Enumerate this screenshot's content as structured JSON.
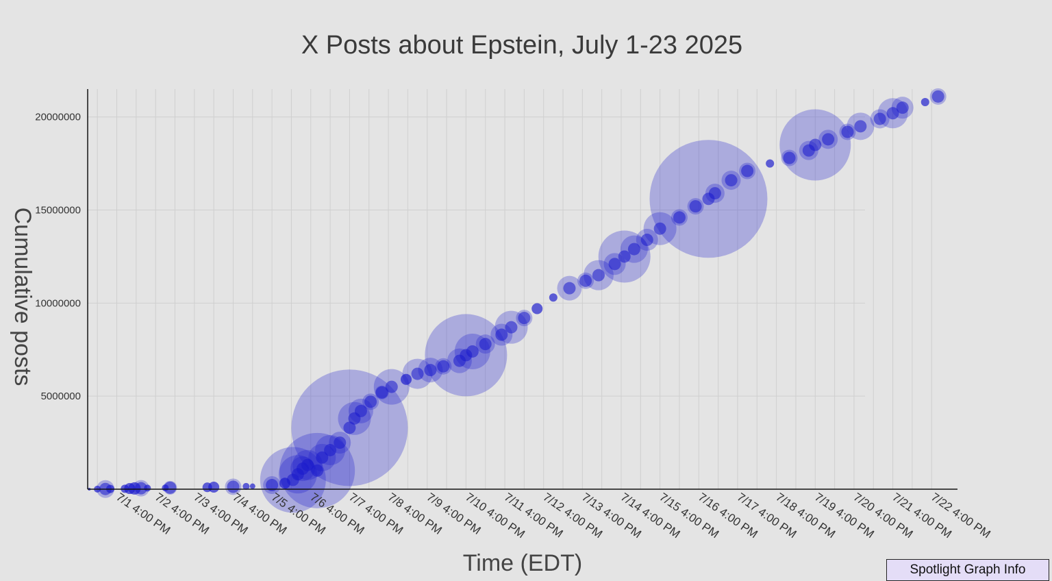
{
  "chart_data": {
    "type": "scatter",
    "title": "X Posts about Epstein, July 1-23 2025",
    "xlabel": "Time (EDT)",
    "ylabel": "Cumulative posts",
    "xlim": [
      "2025-06-30T22:00",
      "2025-07-23T08:00"
    ],
    "ylim": [
      0,
      21500000
    ],
    "y_ticks": [
      5000000,
      10000000,
      15000000,
      20000000
    ],
    "y_tick_labels": [
      "5000000",
      "10000000",
      "15000000",
      "20000000"
    ],
    "x_ticks": [
      "2025-07-01T16:00",
      "2025-07-02T16:00",
      "2025-07-03T16:00",
      "2025-07-04T16:00",
      "2025-07-05T16:00",
      "2025-07-06T16:00",
      "2025-07-07T16:00",
      "2025-07-08T16:00",
      "2025-07-09T16:00",
      "2025-07-10T16:00",
      "2025-07-11T16:00",
      "2025-07-12T16:00",
      "2025-07-13T16:00",
      "2025-07-14T16:00",
      "2025-07-15T16:00",
      "2025-07-16T16:00",
      "2025-07-17T16:00",
      "2025-07-18T16:00",
      "2025-07-19T16:00",
      "2025-07-20T16:00",
      "2025-07-21T16:00",
      "2025-07-22T16:00"
    ],
    "x_tick_labels": [
      "7/1 4:00 PM",
      "7/2 4:00 PM",
      "7/3 4:00 PM",
      "7/4 4:00 PM",
      "7/5 4:00 PM",
      "7/6 4:00 PM",
      "7/7 4:00 PM",
      "7/8 4:00 PM",
      "7/9 4:00 PM",
      "7/10 4:00 PM",
      "7/11 4:00 PM",
      "7/12 4:00 PM",
      "7/13 4:00 PM",
      "7/14 4:00 PM",
      "7/15 4:00 PM",
      "7/16 4:00 PM",
      "7/17 4:00 PM",
      "7/18 4:00 PM",
      "7/19 4:00 PM",
      "7/20 4:00 PM",
      "7/21 4:00 PM",
      "7/22 4:00 PM"
    ],
    "grid": true,
    "marker_color": "#1a1acc",
    "series": [
      {
        "points": [
          {
            "x": "2025-06-30T23:00",
            "y": 0,
            "r": 2
          },
          {
            "x": "2025-07-01T04:00",
            "y": 5000,
            "r": 5
          },
          {
            "x": "2025-07-01T09:00",
            "y": 10000,
            "r": 13
          },
          {
            "x": "2025-07-01T12:00",
            "y": 15000,
            "r": 6
          },
          {
            "x": "2025-07-01T21:00",
            "y": 25000,
            "r": 6
          },
          {
            "x": "2025-07-02T00:00",
            "y": 35000,
            "r": 8
          },
          {
            "x": "2025-07-02T03:00",
            "y": 40000,
            "r": 9
          },
          {
            "x": "2025-07-02T07:00",
            "y": 50000,
            "r": 12
          },
          {
            "x": "2025-07-02T11:00",
            "y": 60000,
            "r": 5
          },
          {
            "x": "2025-07-02T22:00",
            "y": 70000,
            "r": 5
          },
          {
            "x": "2025-07-03T01:00",
            "y": 80000,
            "r": 10
          },
          {
            "x": "2025-07-04T00:00",
            "y": 100000,
            "r": 7
          },
          {
            "x": "2025-07-04T04:00",
            "y": 110000,
            "r": 8
          },
          {
            "x": "2025-07-04T16:00",
            "y": 130000,
            "r": 12
          },
          {
            "x": "2025-07-05T00:00",
            "y": 150000,
            "r": 5
          },
          {
            "x": "2025-07-05T04:00",
            "y": 160000,
            "r": 4
          },
          {
            "x": "2025-07-05T16:00",
            "y": 220000,
            "r": 13
          },
          {
            "x": "2025-07-06T00:00",
            "y": 320000,
            "r": 8
          },
          {
            "x": "2025-07-06T05:00",
            "y": 500000,
            "r": 48
          },
          {
            "x": "2025-07-06T08:00",
            "y": 800000,
            "r": 28
          },
          {
            "x": "2025-07-06T11:00",
            "y": 1100000,
            "r": 18
          },
          {
            "x": "2025-07-06T14:00",
            "y": 1300000,
            "r": 22
          },
          {
            "x": "2025-07-06T20:00",
            "y": 1000000,
            "r": 55
          },
          {
            "x": "2025-07-06T23:00",
            "y": 1700000,
            "r": 20
          },
          {
            "x": "2025-07-07T04:00",
            "y": 2100000,
            "r": 22
          },
          {
            "x": "2025-07-07T10:00",
            "y": 2500000,
            "r": 16
          },
          {
            "x": "2025-07-07T16:00",
            "y": 3300000,
            "r": 85
          },
          {
            "x": "2025-07-07T19:00",
            "y": 3800000,
            "r": 24
          },
          {
            "x": "2025-07-07T23:00",
            "y": 4200000,
            "r": 18
          },
          {
            "x": "2025-07-08T05:00",
            "y": 4700000,
            "r": 12
          },
          {
            "x": "2025-07-08T12:00",
            "y": 5200000,
            "r": 10
          },
          {
            "x": "2025-07-08T18:00",
            "y": 5500000,
            "r": 26
          },
          {
            "x": "2025-07-09T03:00",
            "y": 5900000,
            "r": 8
          },
          {
            "x": "2025-07-09T10:00",
            "y": 6200000,
            "r": 22
          },
          {
            "x": "2025-07-09T18:00",
            "y": 6400000,
            "r": 18
          },
          {
            "x": "2025-07-10T02:00",
            "y": 6600000,
            "r": 12
          },
          {
            "x": "2025-07-10T12:00",
            "y": 6900000,
            "r": 18
          },
          {
            "x": "2025-07-10T16:00",
            "y": 7200000,
            "r": 60
          },
          {
            "x": "2025-07-10T20:00",
            "y": 7400000,
            "r": 26
          },
          {
            "x": "2025-07-11T04:00",
            "y": 7800000,
            "r": 14
          },
          {
            "x": "2025-07-11T14:00",
            "y": 8300000,
            "r": 16
          },
          {
            "x": "2025-07-11T20:00",
            "y": 8700000,
            "r": 24
          },
          {
            "x": "2025-07-12T04:00",
            "y": 9200000,
            "r": 12
          },
          {
            "x": "2025-07-12T12:00",
            "y": 9700000,
            "r": 8
          },
          {
            "x": "2025-07-12T22:00",
            "y": 10300000,
            "r": 6
          },
          {
            "x": "2025-07-13T08:00",
            "y": 10800000,
            "r": 18
          },
          {
            "x": "2025-07-13T18:00",
            "y": 11200000,
            "r": 12
          },
          {
            "x": "2025-07-14T02:00",
            "y": 11500000,
            "r": 22
          },
          {
            "x": "2025-07-14T12:00",
            "y": 12100000,
            "r": 16
          },
          {
            "x": "2025-07-14T18:00",
            "y": 12500000,
            "r": 38
          },
          {
            "x": "2025-07-15T00:00",
            "y": 12900000,
            "r": 20
          },
          {
            "x": "2025-07-15T08:00",
            "y": 13400000,
            "r": 16
          },
          {
            "x": "2025-07-15T16:00",
            "y": 14000000,
            "r": 24
          },
          {
            "x": "2025-07-16T04:00",
            "y": 14600000,
            "r": 12
          },
          {
            "x": "2025-07-16T14:00",
            "y": 15200000,
            "r": 12
          },
          {
            "x": "2025-07-16T22:00",
            "y": 15600000,
            "r": 86
          },
          {
            "x": "2025-07-17T02:00",
            "y": 15900000,
            "r": 14
          },
          {
            "x": "2025-07-17T12:00",
            "y": 16600000,
            "r": 14
          },
          {
            "x": "2025-07-17T22:00",
            "y": 17100000,
            "r": 12
          },
          {
            "x": "2025-07-18T12:00",
            "y": 17500000,
            "r": 6
          },
          {
            "x": "2025-07-19T00:00",
            "y": 17800000,
            "r": 12
          },
          {
            "x": "2025-07-19T12:00",
            "y": 18200000,
            "r": 14
          },
          {
            "x": "2025-07-19T16:00",
            "y": 18500000,
            "r": 52
          },
          {
            "x": "2025-07-20T00:00",
            "y": 18800000,
            "r": 14
          },
          {
            "x": "2025-07-20T12:00",
            "y": 19200000,
            "r": 12
          },
          {
            "x": "2025-07-20T20:00",
            "y": 19500000,
            "r": 20
          },
          {
            "x": "2025-07-21T08:00",
            "y": 19900000,
            "r": 14
          },
          {
            "x": "2025-07-21T16:00",
            "y": 20200000,
            "r": 22
          },
          {
            "x": "2025-07-21T22:00",
            "y": 20500000,
            "r": 16
          },
          {
            "x": "2025-07-22T12:00",
            "y": 20800000,
            "r": 6
          },
          {
            "x": "2025-07-22T20:00",
            "y": 21100000,
            "r": 12
          }
        ]
      }
    ]
  },
  "controls": {
    "spotlight_label": "Spotlight Graph Info"
  }
}
